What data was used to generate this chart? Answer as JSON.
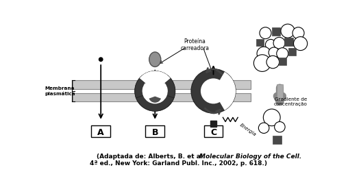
{
  "bg_color": "#ffffff",
  "mem_color": "#c8c8c8",
  "mem_edge": "#888888",
  "protein_dark": "#383838",
  "protein_mid": "#555555",
  "arrow_color": "#000000",
  "text_membrana": "Membrana\nplasmática",
  "text_proteina": "Proteína\ncarreadora",
  "text_A": "A",
  "text_B": "B",
  "text_C": "C",
  "text_energia": "Energia",
  "text_gradiente": "Gradiente de\nconcentração",
  "citation_normal": "(Adaptada de: Alberts, B. et al. ",
  "citation_italic": "Molecular Biology of the Cell.",
  "citation_line2": "4ª ed., New York: Garland Publ. Inc., 2002, p. 618.)"
}
